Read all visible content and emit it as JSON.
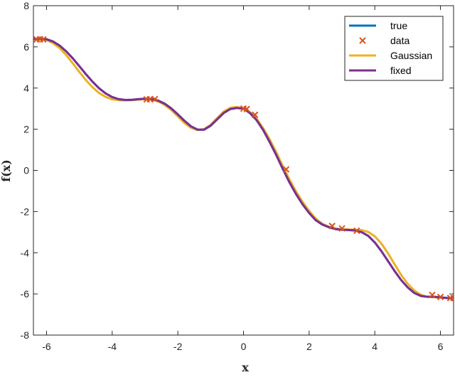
{
  "chart_data": {
    "type": "line",
    "title": "",
    "xlabel": "x",
    "ylabel": "f(x)",
    "xlim": [
      -6.4,
      6.4
    ],
    "ylim": [
      -8,
      8
    ],
    "xticks": [
      -6,
      -4,
      -2,
      0,
      2,
      4,
      6
    ],
    "xtick_labels": [
      "-6",
      "-4",
      "-2",
      "0",
      "2",
      "4",
      "6"
    ],
    "yticks": [
      -8,
      -6,
      -4,
      -2,
      0,
      2,
      4,
      6,
      8
    ],
    "ytick_labels": [
      "-8",
      "-6",
      "-4",
      "-2",
      "0",
      "2",
      "4",
      "6",
      "8"
    ],
    "grid": false,
    "legend_position": "top-right",
    "series": [
      {
        "name": "true",
        "type": "line",
        "color": "#0072BD",
        "x": [
          -6.4,
          -6.2,
          -6.0,
          -5.8,
          -5.6,
          -5.4,
          -5.2,
          -5.0,
          -4.8,
          -4.6,
          -4.4,
          -4.2,
          -4.0,
          -3.8,
          -3.6,
          -3.4,
          -3.2,
          -3.0,
          -2.8,
          -2.6,
          -2.4,
          -2.2,
          -2.0,
          -1.8,
          -1.6,
          -1.4,
          -1.2,
          -1.0,
          -0.8,
          -0.6,
          -0.4,
          -0.2,
          0.0,
          0.2,
          0.4,
          0.6,
          0.8,
          1.0,
          1.2,
          1.4,
          1.6,
          1.8,
          2.0,
          2.2,
          2.4,
          2.6,
          2.8,
          3.0,
          3.2,
          3.4,
          3.6,
          3.8,
          4.0,
          4.2,
          4.4,
          4.6,
          4.8,
          5.0,
          5.2,
          5.4,
          5.6,
          5.8,
          6.0,
          6.2,
          6.4
        ],
        "y": [
          6.37,
          6.4,
          6.37,
          6.26,
          6.06,
          5.78,
          5.44,
          5.06,
          4.67,
          4.31,
          3.99,
          3.74,
          3.56,
          3.46,
          3.42,
          3.43,
          3.46,
          3.48,
          3.46,
          3.39,
          3.24,
          3.01,
          2.72,
          2.41,
          2.14,
          1.98,
          1.98,
          2.17,
          2.48,
          2.79,
          2.98,
          3.03,
          3.0,
          2.78,
          2.44,
          1.96,
          1.37,
          0.74,
          0.06,
          -0.58,
          -1.15,
          -1.65,
          -2.07,
          -2.42,
          -2.63,
          -2.76,
          -2.85,
          -2.88,
          -2.9,
          -2.92,
          -3.0,
          -3.18,
          -3.5,
          -3.92,
          -4.4,
          -4.88,
          -5.32,
          -5.68,
          -5.95,
          -6.1,
          -6.14,
          -6.14,
          -6.17,
          -6.2,
          -6.22
        ]
      },
      {
        "name": "data",
        "type": "scatter",
        "color": "#D95319",
        "x": [
          -6.3,
          -6.2,
          -6.1,
          -2.95,
          -2.85,
          -2.7,
          0.0,
          0.1,
          0.35,
          1.3,
          2.7,
          3.0,
          3.45,
          5.75,
          6.0,
          6.3,
          6.4
        ],
        "y": [
          6.36,
          6.37,
          6.36,
          3.45,
          3.46,
          3.46,
          3.0,
          2.98,
          2.7,
          0.05,
          -2.7,
          -2.82,
          -2.93,
          -6.05,
          -6.15,
          -6.2,
          -6.2
        ]
      },
      {
        "name": "Gaussian",
        "type": "line",
        "color": "#EDB120",
        "x": [
          -6.4,
          -6.2,
          -6.0,
          -5.8,
          -5.6,
          -5.4,
          -5.2,
          -5.0,
          -4.8,
          -4.6,
          -4.4,
          -4.2,
          -4.0,
          -3.8,
          -3.6,
          -3.4,
          -3.2,
          -3.0,
          -2.8,
          -2.6,
          -2.4,
          -2.2,
          -2.0,
          -1.8,
          -1.6,
          -1.4,
          -1.2,
          -1.0,
          -0.8,
          -0.6,
          -0.4,
          -0.2,
          0.0,
          0.2,
          0.4,
          0.6,
          0.8,
          1.0,
          1.2,
          1.4,
          1.6,
          1.8,
          2.0,
          2.2,
          2.4,
          2.6,
          2.8,
          3.0,
          3.2,
          3.4,
          3.6,
          3.8,
          4.0,
          4.2,
          4.4,
          4.6,
          4.8,
          5.0,
          5.2,
          5.4,
          5.6,
          5.8,
          6.0,
          6.2,
          6.4
        ],
        "y": [
          6.37,
          6.38,
          6.33,
          6.18,
          5.94,
          5.6,
          5.2,
          4.78,
          4.38,
          4.04,
          3.76,
          3.57,
          3.45,
          3.41,
          3.4,
          3.41,
          3.44,
          3.46,
          3.44,
          3.35,
          3.18,
          2.93,
          2.62,
          2.3,
          2.07,
          1.96,
          2.0,
          2.22,
          2.55,
          2.86,
          3.04,
          3.08,
          3.02,
          2.82,
          2.5,
          2.05,
          1.5,
          0.88,
          0.2,
          -0.44,
          -1.02,
          -1.53,
          -1.97,
          -2.34,
          -2.59,
          -2.74,
          -2.82,
          -2.86,
          -2.87,
          -2.88,
          -2.9,
          -2.99,
          -3.2,
          -3.55,
          -4.02,
          -4.55,
          -5.07,
          -5.5,
          -5.83,
          -6.04,
          -6.14,
          -6.16,
          -6.18,
          -6.2,
          -6.22
        ]
      },
      {
        "name": "fixed",
        "type": "line",
        "color": "#7E2F8E",
        "x": [
          -6.4,
          -6.2,
          -6.0,
          -5.8,
          -5.6,
          -5.4,
          -5.2,
          -5.0,
          -4.8,
          -4.6,
          -4.4,
          -4.2,
          -4.0,
          -3.8,
          -3.6,
          -3.4,
          -3.2,
          -3.0,
          -2.8,
          -2.6,
          -2.4,
          -2.2,
          -2.0,
          -1.8,
          -1.6,
          -1.4,
          -1.2,
          -1.0,
          -0.8,
          -0.6,
          -0.4,
          -0.2,
          0.0,
          0.2,
          0.4,
          0.6,
          0.8,
          1.0,
          1.2,
          1.4,
          1.6,
          1.8,
          2.0,
          2.2,
          2.4,
          2.6,
          2.8,
          3.0,
          3.2,
          3.4,
          3.6,
          3.8,
          4.0,
          4.2,
          4.4,
          4.6,
          4.8,
          5.0,
          5.2,
          5.4,
          5.6,
          5.8,
          6.0,
          6.2,
          6.4
        ],
        "y": [
          6.37,
          6.4,
          6.37,
          6.26,
          6.06,
          5.78,
          5.44,
          5.06,
          4.67,
          4.31,
          3.99,
          3.74,
          3.56,
          3.46,
          3.42,
          3.43,
          3.46,
          3.48,
          3.46,
          3.39,
          3.24,
          3.01,
          2.72,
          2.41,
          2.14,
          1.98,
          1.98,
          2.17,
          2.48,
          2.79,
          2.98,
          3.03,
          3.0,
          2.78,
          2.44,
          1.96,
          1.37,
          0.74,
          0.06,
          -0.58,
          -1.15,
          -1.65,
          -2.07,
          -2.42,
          -2.63,
          -2.76,
          -2.85,
          -2.88,
          -2.9,
          -2.92,
          -3.0,
          -3.18,
          -3.5,
          -3.92,
          -4.4,
          -4.88,
          -5.32,
          -5.68,
          -5.95,
          -6.1,
          -6.14,
          -6.14,
          -6.17,
          -6.2,
          -6.22
        ]
      }
    ]
  }
}
